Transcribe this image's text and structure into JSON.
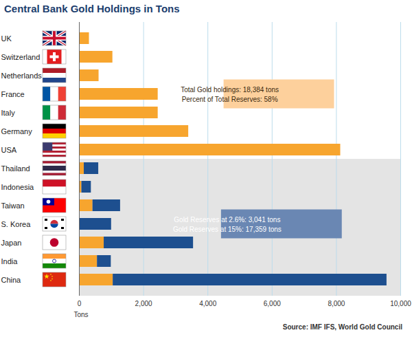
{
  "chart_data": {
    "type": "bar",
    "title": "Central Bank Gold Holdings in Tons",
    "orientation": "horizontal",
    "stacked": true,
    "categories": [
      "UK",
      "Switzerland",
      "Netherlands",
      "France",
      "Italy",
      "Germany",
      "USA",
      "Thailand",
      "Indonesia",
      "Taiwan",
      "S. Korea",
      "Japan",
      "India",
      "China"
    ],
    "series": [
      {
        "color": "#f7a52e",
        "values": [
          310,
          1040,
          610,
          2450,
          2450,
          3400,
          8130,
          150,
          75,
          420,
          15,
          770,
          560,
          1050
        ]
      },
      {
        "color": "#1d4f8f",
        "values": [
          0,
          0,
          0,
          0,
          0,
          0,
          0,
          450,
          295,
          860,
          985,
          2780,
          430,
          8520
        ]
      }
    ],
    "xlim": [
      0,
      10000
    ],
    "xticks": [
      0,
      {
        "value": 2000,
        "label": "2,000"
      },
      {
        "value": 4000,
        "label": "4,000"
      },
      {
        "value": 6000,
        "label": "6,000"
      },
      {
        "value": 8000,
        "label": "8,000"
      },
      {
        "value": 10000,
        "label": "10,000"
      }
    ],
    "x_label": "Tons",
    "grid": true,
    "annotations": [
      [
        "Total Gold holdings: 18,384 tons",
        "Percent of Total Reserves: 58%"
      ],
      [
        "Gold Reserves at 2.6%: 3,041 tons",
        "Gold Reserves at 15%: 17,359 tons"
      ]
    ],
    "source": "Source: IMF IFS, World Gold Council"
  }
}
